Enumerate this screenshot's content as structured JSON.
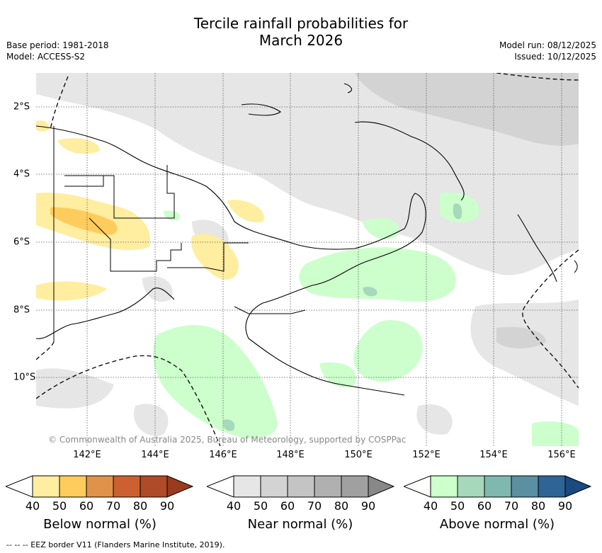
{
  "header": {
    "title_line1": "Tercile rainfall probabilities for",
    "title_line2": "March 2026",
    "base_period": "Base period: 1981-2018",
    "model": "Model: ACCESS-S2",
    "model_run": "Model run: 08/12/2025",
    "issued": "Issued: 10/12/2025"
  },
  "map": {
    "x_ticks": [
      "142°E",
      "144°E",
      "146°E",
      "148°E",
      "150°E",
      "152°E",
      "154°E",
      "156°E"
    ],
    "y_ticks": [
      "2°S",
      "4°S",
      "6°S",
      "8°S",
      "10°S"
    ],
    "copyright": "© Commonwealth of Australia 2025, Bureau of Meteorology, supported by COSPPac"
  },
  "legends": [
    {
      "title": "Below normal (%)",
      "ticks": [
        "40",
        "50",
        "60",
        "70",
        "80",
        "90"
      ],
      "colors": [
        "#ffffff",
        "#ffeda0",
        "#fecc5c",
        "#e0924a",
        "#cc6030",
        "#b04a28",
        "#9a3a1e"
      ]
    },
    {
      "title": "Near normal (%)",
      "ticks": [
        "40",
        "50",
        "60",
        "70",
        "80",
        "90"
      ],
      "colors": [
        "#ffffff",
        "#e6e6e6",
        "#d3d3d3",
        "#c4c4c4",
        "#b0b0b0",
        "#a0a0a0",
        "#888888"
      ]
    },
    {
      "title": "Above normal (%)",
      "ticks": [
        "40",
        "50",
        "60",
        "70",
        "80",
        "90"
      ],
      "colors": [
        "#ffffff",
        "#ccffcc",
        "#a6d8bc",
        "#7fb8b0",
        "#5a90a0",
        "#2f6496",
        "#1a4a80"
      ]
    }
  ],
  "footnote": "--  --  -- EEZ border V11 (Flanders Marine Institute, 2019)."
}
